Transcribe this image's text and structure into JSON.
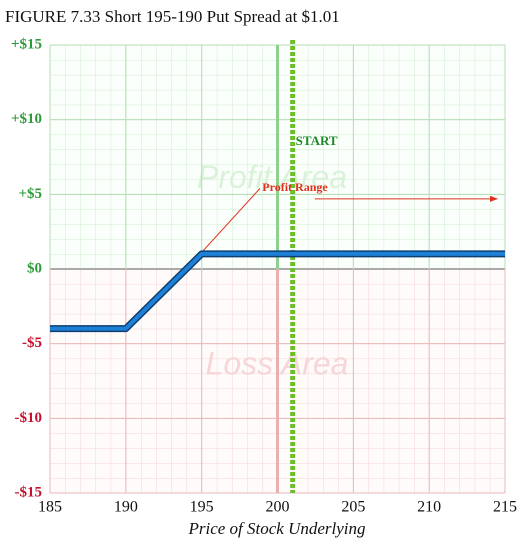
{
  "chart_data": {
    "type": "line",
    "title": "FIGURE 7.33 Short 195-190 Put Spread at $1.01",
    "xlabel": "Price of Stock Underlying",
    "x": [
      185,
      190,
      195,
      215
    ],
    "series": [
      {
        "name": "Short 195-190 Put Spread",
        "color": "#1e7fd6",
        "values": [
          -3.99,
          -3.99,
          1.01,
          1.01
        ]
      }
    ],
    "xlim": [
      185,
      215
    ],
    "xticks": [
      185,
      190,
      195,
      200,
      205,
      210,
      215
    ],
    "ylim": [
      -15,
      15
    ],
    "yticks": [
      {
        "value": 15,
        "label": "+$15"
      },
      {
        "value": 10,
        "label": "+$10"
      },
      {
        "value": 5,
        "label": "+$5"
      },
      {
        "value": 0,
        "label": "$0"
      },
      {
        "value": -5,
        "label": "-$5"
      },
      {
        "value": -10,
        "label": "-$10"
      },
      {
        "value": -15,
        "label": "-$15"
      }
    ],
    "grid": true,
    "start_x": 201,
    "start_label": "START",
    "breakeven": 194,
    "profit_range": [
      201,
      215
    ],
    "profit_range_y": 4.7,
    "profit_range_label": "Profit Range",
    "profit_area_label": "Profit Area",
    "loss_area_label": "Loss Area"
  }
}
